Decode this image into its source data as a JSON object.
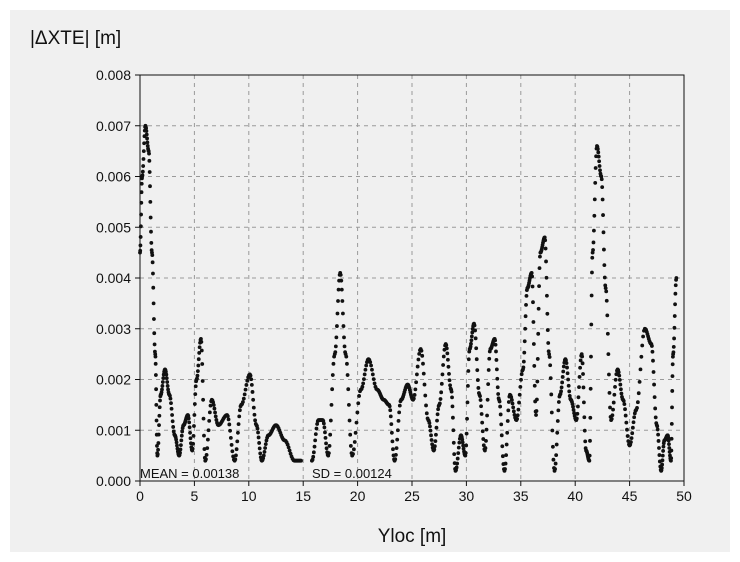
{
  "chart_data": {
    "type": "scatter",
    "ylabel": "|ΔXTE| [m]",
    "xlabel": "Yloc [m]",
    "xlim": [
      0,
      50
    ],
    "ylim": [
      0,
      0.008
    ],
    "grid": true,
    "x_ticks": [
      0,
      5,
      10,
      15,
      20,
      25,
      30,
      35,
      40,
      45,
      50
    ],
    "x_tick_labels": [
      "0",
      "5",
      "10",
      "15",
      "20",
      "25",
      "30",
      "35",
      "40",
      "45",
      "50"
    ],
    "y_ticks": [
      0,
      0.001,
      0.002,
      0.003,
      0.004,
      0.005,
      0.006,
      0.007,
      0.008
    ],
    "y_tick_labels": [
      "0.000",
      "0.001",
      "0.002",
      "0.003",
      "0.004",
      "0.005",
      "0.006",
      "0.007",
      "0.008"
    ],
    "annotations": {
      "mean": "MEAN =  0.00138",
      "sd": "SD = 0.00124"
    },
    "series": [
      {
        "segments": [
          [
            [
              0.0,
              0.0045
            ],
            [
              0.2,
              0.006
            ],
            [
              0.5,
              0.007
            ],
            [
              0.8,
              0.0065
            ],
            [
              1.1,
              0.0045
            ],
            [
              1.4,
              0.0025
            ],
            [
              1.6,
              0.0005
            ],
            [
              1.9,
              0.0017
            ],
            [
              2.3,
              0.0022
            ],
            [
              2.7,
              0.0017
            ],
            [
              3.2,
              0.0009
            ],
            [
              3.6,
              0.0005
            ],
            [
              4.0,
              0.0011
            ],
            [
              4.4,
              0.0013
            ],
            [
              4.8,
              0.0006
            ],
            [
              5.2,
              0.002
            ],
            [
              5.6,
              0.0028
            ],
            [
              6.0,
              0.0004
            ],
            [
              6.6,
              0.0016
            ],
            [
              7.2,
              0.0011
            ],
            [
              8.0,
              0.0013
            ],
            [
              8.7,
              0.0004
            ],
            [
              9.3,
              0.0015
            ],
            [
              10.1,
              0.0021
            ],
            [
              10.7,
              0.0011
            ],
            [
              11.2,
              0.0004
            ],
            [
              11.8,
              0.0009
            ],
            [
              12.5,
              0.0011
            ],
            [
              13.3,
              0.0008
            ],
            [
              14.2,
              0.0004
            ],
            [
              14.8,
              0.0004
            ]
          ],
          [
            [
              15.8,
              0.0004
            ],
            [
              16.4,
              0.0012
            ],
            [
              16.8,
              0.0012
            ],
            [
              17.3,
              0.0005
            ],
            [
              17.9,
              0.0025
            ],
            [
              18.4,
              0.0041
            ],
            [
              18.9,
              0.0025
            ],
            [
              19.5,
              0.0005
            ],
            [
              20.3,
              0.0018
            ],
            [
              21.0,
              0.0024
            ],
            [
              21.8,
              0.0018
            ],
            [
              22.4,
              0.0016
            ],
            [
              22.9,
              0.0015
            ],
            [
              23.4,
              0.0004
            ],
            [
              24.0,
              0.0016
            ],
            [
              24.6,
              0.0019
            ],
            [
              25.1,
              0.0016
            ],
            [
              25.8,
              0.0026
            ],
            [
              26.5,
              0.0012
            ],
            [
              27.0,
              0.0006
            ],
            [
              27.5,
              0.0015
            ],
            [
              28.1,
              0.0027
            ],
            [
              28.6,
              0.0018
            ],
            [
              29.0,
              0.0002
            ],
            [
              29.5,
              0.0009
            ],
            [
              29.9,
              0.0005
            ],
            [
              30.3,
              0.0026
            ],
            [
              30.7,
              0.0031
            ],
            [
              31.2,
              0.0017
            ],
            [
              31.7,
              0.0006
            ],
            [
              32.2,
              0.0026
            ],
            [
              32.6,
              0.0028
            ],
            [
              33.0,
              0.0016
            ],
            [
              33.5,
              0.0002
            ],
            [
              34.0,
              0.0017
            ],
            [
              34.6,
              0.0012
            ],
            [
              35.2,
              0.0022
            ],
            [
              35.6,
              0.0038
            ],
            [
              36.0,
              0.0041
            ],
            [
              36.4,
              0.0013
            ],
            [
              36.8,
              0.0045
            ],
            [
              37.2,
              0.0048
            ],
            [
              37.6,
              0.0025
            ],
            [
              38.1,
              0.0002
            ],
            [
              38.6,
              0.0017
            ],
            [
              39.1,
              0.0024
            ],
            [
              39.6,
              0.0016
            ],
            [
              40.1,
              0.0012
            ],
            [
              40.6,
              0.0025
            ],
            [
              41.0,
              0.0006
            ],
            [
              41.3,
              0.0004
            ],
            [
              41.6,
              0.0045
            ],
            [
              42.0,
              0.0066
            ],
            [
              42.4,
              0.006
            ],
            [
              42.8,
              0.0038
            ],
            [
              43.3,
              0.0012
            ],
            [
              43.9,
              0.0022
            ],
            [
              44.4,
              0.0016
            ],
            [
              45.0,
              0.0007
            ],
            [
              45.6,
              0.0014
            ],
            [
              46.4,
              0.003
            ],
            [
              47.0,
              0.0027
            ],
            [
              47.5,
              0.0011
            ],
            [
              47.9,
              0.0002
            ],
            [
              48.2,
              0.0008
            ],
            [
              48.5,
              0.0009
            ],
            [
              48.8,
              0.0004
            ],
            [
              49.0,
              0.0025
            ],
            [
              49.3,
              0.004
            ]
          ]
        ]
      }
    ]
  }
}
